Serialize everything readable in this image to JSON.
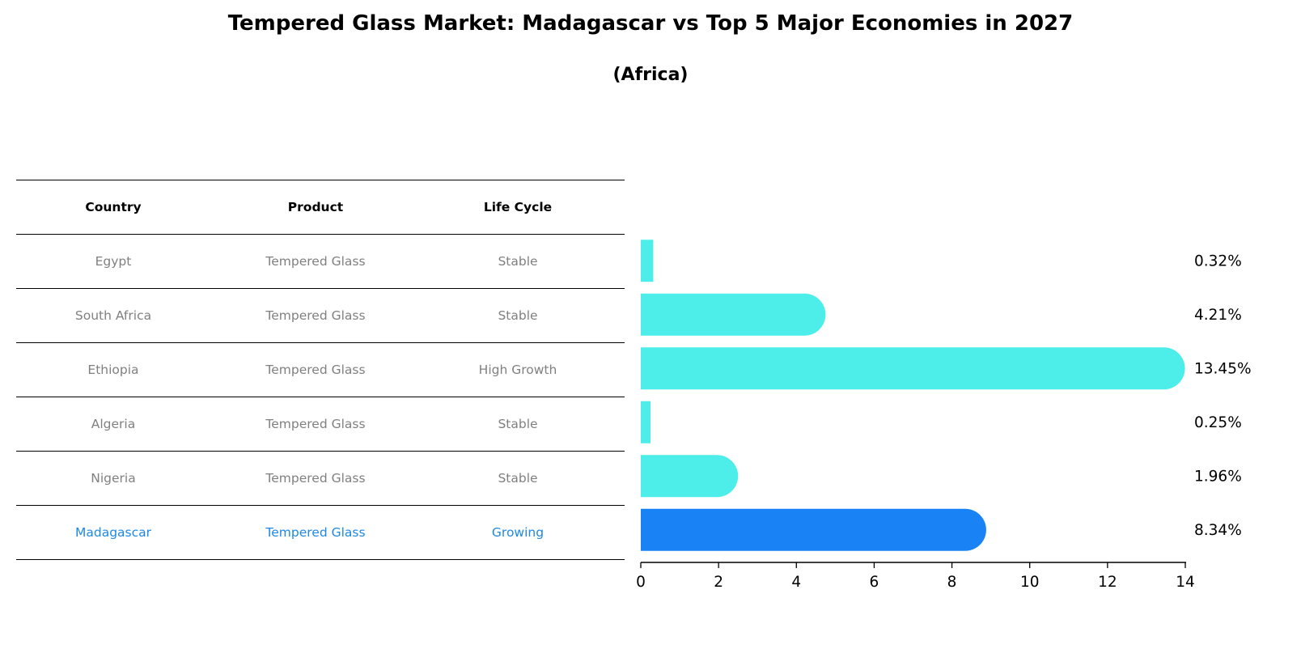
{
  "title": "Tempered Glass Market: Madagascar vs Top 5 Major Economies in 2027",
  "subtitle": "(Africa)",
  "table": {
    "headers": [
      "Country",
      "Product",
      "Life Cycle"
    ],
    "rows": [
      {
        "country": "Egypt",
        "product": "Tempered Glass",
        "life_cycle": "Stable"
      },
      {
        "country": "South Africa",
        "product": "Tempered Glass",
        "life_cycle": "Stable"
      },
      {
        "country": "Ethiopia",
        "product": "Tempered Glass",
        "life_cycle": "High Growth"
      },
      {
        "country": "Algeria",
        "product": "Tempered Glass",
        "life_cycle": "Stable"
      },
      {
        "country": "Nigeria",
        "product": "Tempered Glass",
        "life_cycle": "Stable"
      },
      {
        "country": "Madagascar",
        "product": "Tempered Glass",
        "life_cycle": "Growing"
      }
    ]
  },
  "colors": {
    "bar": "#4dede9",
    "highlight": "#1983f5",
    "highlight_text": "#1e88e5",
    "muted_text": "#808080"
  },
  "chart_data": {
    "type": "bar",
    "orientation": "horizontal",
    "categories": [
      "Egypt",
      "South Africa",
      "Ethiopia",
      "Algeria",
      "Nigeria",
      "Madagascar"
    ],
    "values": [
      0.32,
      4.21,
      13.45,
      0.25,
      1.96,
      8.34
    ],
    "value_labels": [
      "0.32%",
      "4.21%",
      "13.45%",
      "0.25%",
      "1.96%",
      "8.34%"
    ],
    "highlight_category": "Madagascar",
    "xlim": [
      0,
      14
    ],
    "xticks": [
      0,
      2,
      4,
      6,
      8,
      10,
      12,
      14
    ],
    "xtick_labels": [
      "0",
      "2",
      "4",
      "6",
      "8",
      "10",
      "12",
      "14"
    ],
    "xlabel": "",
    "ylabel": "",
    "grid": false
  }
}
